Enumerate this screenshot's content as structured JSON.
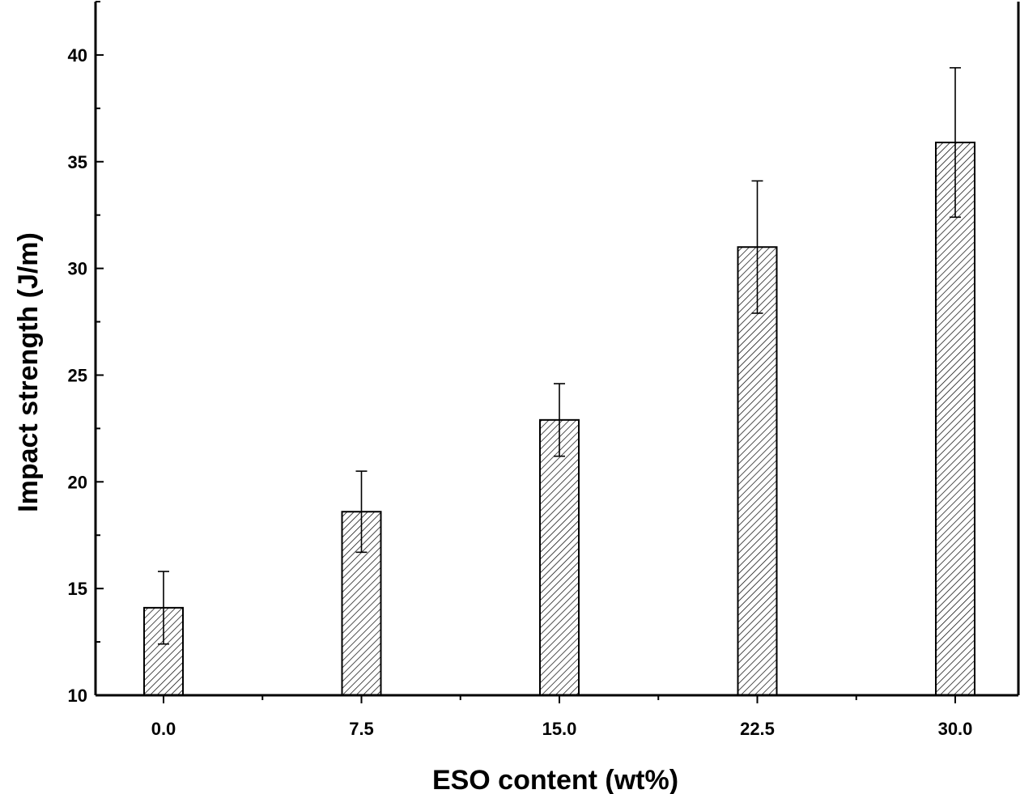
{
  "chart_data": {
    "type": "bar",
    "title": "",
    "xlabel": "ESO content (wt%)",
    "ylabel": "Impact strength (J/m)",
    "categories": [
      "0.0",
      "7.5",
      "15.0",
      "22.5",
      "30.0"
    ],
    "values": [
      14.1,
      18.6,
      22.9,
      31.0,
      35.9
    ],
    "errors": [
      1.7,
      1.9,
      1.7,
      3.1,
      3.5
    ],
    "ylim": [
      10,
      42.5
    ],
    "yticks": [
      "10",
      "15",
      "20",
      "25",
      "30",
      "35",
      "40"
    ],
    "grid": false,
    "legend": "none",
    "bar_fill": "hatched",
    "colors": {
      "axis": "#000000",
      "bar_edge": "#000000",
      "hatch": "#000000",
      "background": "#ffffff"
    }
  }
}
